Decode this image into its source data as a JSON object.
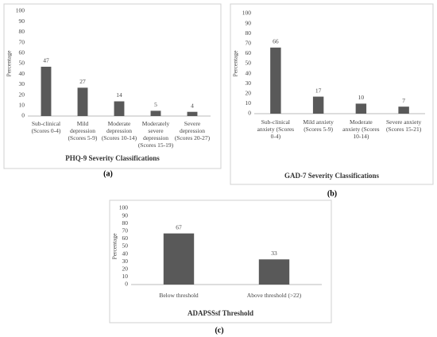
{
  "chart_data": [
    {
      "type": "bar",
      "title": "PHQ-9 Severity Classifications",
      "label": "(a)",
      "y_label": "Percentage",
      "categories": [
        "Sub-clinical\n(Scores 0-4)",
        "Mild\ndepression\n(Scores 5-9)",
        "Moderate\ndepression\n(Scores 10-14)",
        "Moderately\nsevere\ndepression\n(Scores 15-19)",
        "Severe\ndepression\n(Scores 20-27)"
      ],
      "values": [
        47,
        27,
        14,
        5,
        4
      ],
      "color": "#595959",
      "ylim": [
        0,
        100
      ],
      "yticks": [
        0,
        10,
        20,
        30,
        40,
        50,
        60,
        70,
        80,
        90,
        100
      ]
    },
    {
      "type": "bar",
      "title": "GAD-7 Severity Classifications",
      "label": "(b)",
      "y_label": "Percentage",
      "categories": [
        "Sub-clinical\nanxiety (Scores\n0-4)",
        "Mild anxiety\n(Scores 5-9)",
        "Moderate\nanxiety (Scores\n10-14)",
        "Severe anxiety\n(Scores 15-21)"
      ],
      "values": [
        66,
        17,
        10,
        7
      ],
      "color": "#595959",
      "ylim": [
        0,
        100
      ],
      "yticks": [
        0,
        10,
        20,
        30,
        40,
        50,
        60,
        70,
        80,
        90,
        100
      ]
    },
    {
      "type": "bar",
      "title": "ADAPSSsf Threshold",
      "label": "(c)",
      "y_label": "Percentage",
      "categories": [
        "Below threshold",
        "Above threshold (>22)"
      ],
      "values": [
        67,
        33
      ],
      "color": "#595959",
      "ylim": [
        0,
        100
      ],
      "yticks": [
        0,
        10,
        20,
        30,
        40,
        50,
        60,
        70,
        80,
        90,
        100
      ]
    }
  ]
}
